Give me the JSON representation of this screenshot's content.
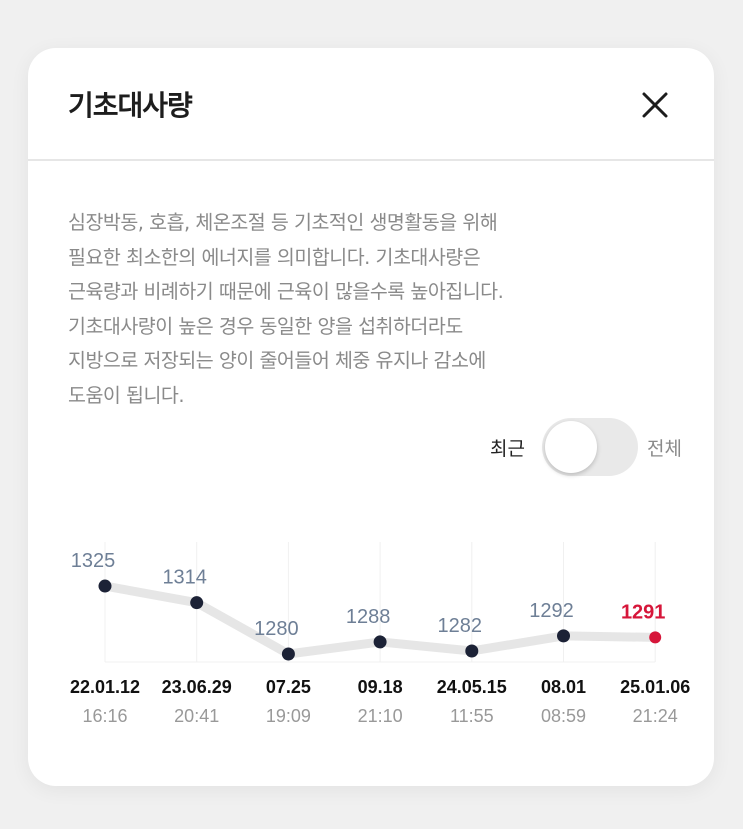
{
  "header": {
    "title": "기초대사량",
    "close_icon": "close-icon"
  },
  "description": [
    "심장박동, 호흡, 체온조절 등 기초적인 생명활동을 위해",
    "필요한 최소한의 에너지를 의미합니다. 기초대사량은",
    "근육량과 비례하기 때문에 근육이 많을수록 높아집니다.",
    "기초대사량이 높은 경우 동일한 양을 섭취하더라도",
    "지방으로 저장되는 양이 줄어들어 체중 유지나 감소에",
    "도움이 됩니다."
  ],
  "toggle": {
    "left_label": "최근",
    "right_label": "전체",
    "selected": "최근"
  },
  "chart_data": {
    "type": "line",
    "x": [
      "22.01.12",
      "23.06.29",
      "07.25",
      "09.18",
      "24.05.15",
      "08.01",
      "25.01.06"
    ],
    "times": [
      "16:16",
      "20:41",
      "19:09",
      "21:10",
      "11:55",
      "08:59",
      "21:24"
    ],
    "values": [
      1325,
      1314,
      1280,
      1288,
      1282,
      1292,
      1291
    ],
    "colors": {
      "point": "#1c2236",
      "latest": "#d6163a",
      "line": "#e6e6e6",
      "label": "#6e7f96"
    }
  }
}
